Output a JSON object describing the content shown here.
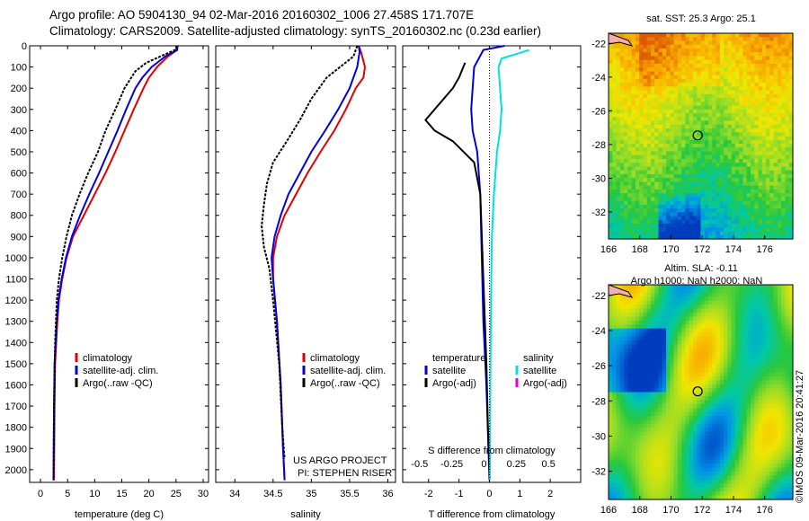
{
  "header": {
    "line1": "Argo profile: AO 5904130_94 02-Mar-2016 20160302_1006 27.458S 171.707E",
    "line2": "Climatology: CARS2009. Satellite-adjusted climatology: synTS_20160302.nc (0.23d earlier)"
  },
  "footer_stamp": "©IMOS 09-Mar-2016 20:41:27",
  "project_note": [
    "US ARGO PROJECT",
    "PI: STEPHEN RISER"
  ],
  "colors": {
    "climatology": "#e00000",
    "satellite": "#0000e0",
    "argo": "#000000",
    "sat_salinity": "#00e0e0",
    "argo_adj_salinity": "#e000e0"
  },
  "chart_data": [
    {
      "type": "line",
      "id": "temperature",
      "xlabel": "temperature (deg C)",
      "xlim": [
        -2,
        31
      ],
      "ylim": [
        2060,
        0
      ],
      "y_reversed": true,
      "xticks": [
        0,
        5,
        10,
        15,
        20,
        25,
        30
      ],
      "yticks": [
        0,
        100,
        200,
        300,
        400,
        500,
        600,
        700,
        800,
        900,
        1000,
        1100,
        1200,
        1300,
        1400,
        1500,
        1600,
        1700,
        1800,
        1900,
        2000
      ],
      "legend": [
        "climatology",
        "satellite-adj. clim.",
        "Argo(..raw -QC)"
      ],
      "series": [
        {
          "name": "climatology",
          "color": "#e00000",
          "x": [
            25.3,
            25.2,
            23.5,
            21.5,
            20.0,
            19.0,
            17.2,
            15.5,
            13.8,
            12.0,
            10.0,
            8.0,
            6.0,
            4.8,
            4.0,
            3.4,
            3.1,
            2.7,
            2.6,
            2.5
          ],
          "y": [
            0,
            20,
            50,
            100,
            150,
            200,
            300,
            400,
            500,
            600,
            700,
            800,
            900,
            1000,
            1100,
            1200,
            1300,
            1500,
            1700,
            2050
          ]
        },
        {
          "name": "satellite-adj. clim.",
          "color": "#0000e0",
          "x": [
            25.3,
            25.2,
            23.0,
            20.5,
            18.8,
            17.5,
            15.8,
            14.2,
            12.5,
            10.8,
            9.0,
            7.3,
            5.8,
            4.7,
            3.9,
            3.3,
            3.0,
            2.6,
            2.5,
            2.4
          ],
          "y": [
            0,
            20,
            50,
            100,
            150,
            200,
            300,
            400,
            500,
            600,
            700,
            800,
            900,
            1000,
            1100,
            1200,
            1300,
            1500,
            1700,
            2050
          ]
        },
        {
          "name": "Argo(..raw -QC)",
          "color": "#000000",
          "x": [
            25.2,
            24.8,
            23.0,
            19.5,
            17.5,
            15.5,
            13.8,
            12.0,
            10.6,
            8.8,
            7.2,
            5.8,
            4.8,
            4.0,
            3.4,
            3.0,
            2.7,
            2.5,
            2.4
          ],
          "y": [
            0,
            20,
            40,
            80,
            120,
            200,
            300,
            400,
            500,
            600,
            700,
            800,
            900,
            1000,
            1100,
            1200,
            1400,
            1700,
            2050
          ]
        }
      ]
    },
    {
      "type": "line",
      "id": "salinity",
      "xlabel": "salinity",
      "xlim": [
        33.75,
        36.1
      ],
      "ylim": [
        2060,
        0
      ],
      "y_reversed": true,
      "xticks": [
        34,
        34.5,
        35,
        35.5,
        36
      ],
      "legend": [
        "climatology",
        "satellite-adj. clim.",
        "Argo(..raw -QC)"
      ],
      "series": [
        {
          "name": "climatology",
          "color": "#e00000",
          "x": [
            35.62,
            35.65,
            35.7,
            35.68,
            35.58,
            35.45,
            35.3,
            35.12,
            34.95,
            34.8,
            34.65,
            34.55,
            34.5,
            34.5,
            34.55,
            34.6,
            34.63,
            34.65
          ],
          "y": [
            0,
            30,
            100,
            150,
            200,
            300,
            400,
            500,
            600,
            700,
            800,
            900,
            1000,
            1100,
            1300,
            1600,
            1900,
            2050
          ]
        },
        {
          "name": "satellite-adj. clim.",
          "color": "#0000e0",
          "x": [
            35.62,
            35.63,
            35.6,
            35.5,
            35.35,
            35.18,
            35.0,
            34.85,
            34.7,
            34.6,
            34.52,
            34.48,
            34.5,
            34.55,
            34.6,
            34.63,
            34.65
          ],
          "y": [
            0,
            30,
            100,
            200,
            300,
            400,
            500,
            600,
            700,
            800,
            900,
            1000,
            1100,
            1300,
            1600,
            1900,
            2050
          ]
        },
        {
          "name": "Argo(..raw -QC)",
          "color": "#000000",
          "x": [
            35.6,
            35.55,
            35.2,
            35.0,
            34.85,
            34.68,
            34.5,
            34.42,
            34.38,
            34.35,
            34.38,
            34.45,
            34.5,
            34.58,
            34.62,
            34.65
          ],
          "y": [
            0,
            50,
            150,
            250,
            350,
            450,
            550,
            650,
            750,
            850,
            950,
            1050,
            1200,
            1500,
            1800,
            1950
          ]
        }
      ]
    },
    {
      "type": "line",
      "id": "difference",
      "xlabel": "T difference from climatology",
      "xlabel_top": "S difference from climatology",
      "xlim": [
        -2.85,
        3.0
      ],
      "ylim": [
        2060,
        0
      ],
      "y_reversed": true,
      "xticks": [
        -2,
        -1,
        0,
        1,
        2
      ],
      "xticks_top": [
        "-0.5",
        "-0.25",
        "0",
        "0.25",
        "0.5"
      ],
      "legend_left": [
        "temperature",
        "satellite",
        "Argo(-adj)"
      ],
      "legend_right": [
        "salinity",
        "satellite",
        "Argo(-adj)"
      ],
      "series": [
        {
          "name": "temperature satellite",
          "color": "#0000e0",
          "x": [
            0.5,
            -0.2,
            -0.5,
            -0.55,
            -0.6,
            -0.55,
            -0.4,
            -0.3,
            -0.25,
            -0.2,
            -0.1,
            0
          ],
          "y": [
            0,
            20,
            100,
            200,
            300,
            400,
            500,
            700,
            1000,
            1300,
            1600,
            2050
          ]
        },
        {
          "name": "temperature Argo(-adj)",
          "color": "#000000",
          "x": [
            -0.8,
            -1.0,
            -1.2,
            -1.8,
            -2.1,
            -1.8,
            -1.2,
            -0.5,
            -0.3,
            -0.25,
            -0.2,
            -0.15,
            -0.1,
            -0.05,
            0
          ],
          "y": [
            80,
            150,
            200,
            300,
            350,
            400,
            450,
            550,
            700,
            900,
            1100,
            1300,
            1500,
            1800,
            2000
          ]
        },
        {
          "name": "salinity satellite",
          "color": "#00e0e0",
          "x": [
            1.3,
            0.4,
            0.3,
            0.35,
            0.4,
            0.35,
            0.25,
            0.15,
            0.08,
            0.05,
            0.03,
            0.02
          ],
          "y": [
            20,
            60,
            100,
            200,
            300,
            400,
            500,
            700,
            900,
            1200,
            1600,
            2050
          ]
        }
      ]
    },
    {
      "type": "heatmap",
      "id": "sst-map",
      "title": "sat. SST: 25.3 Argo: 25.1",
      "xlim": [
        166,
        177.8
      ],
      "ylim": [
        -33.6,
        -21.4
      ],
      "xticks": [
        166,
        168,
        170,
        172,
        174,
        176
      ],
      "yticks": [
        -22,
        -24,
        -26,
        -28,
        -30,
        -32
      ],
      "marker": {
        "lon": 171.707,
        "lat": -27.458
      }
    },
    {
      "type": "heatmap",
      "id": "sla-map",
      "title": "Altim. SLA: -0.11",
      "subtitle": "Argo h1000: NaN h2000: NaN",
      "xlim": [
        166,
        177.8
      ],
      "ylim": [
        -33.6,
        -21.4
      ],
      "xticks": [
        166,
        168,
        170,
        172,
        174,
        176
      ],
      "yticks": [
        -22,
        -24,
        -26,
        -28,
        -30,
        -32
      ],
      "marker": {
        "lon": 171.707,
        "lat": -27.458
      }
    }
  ]
}
